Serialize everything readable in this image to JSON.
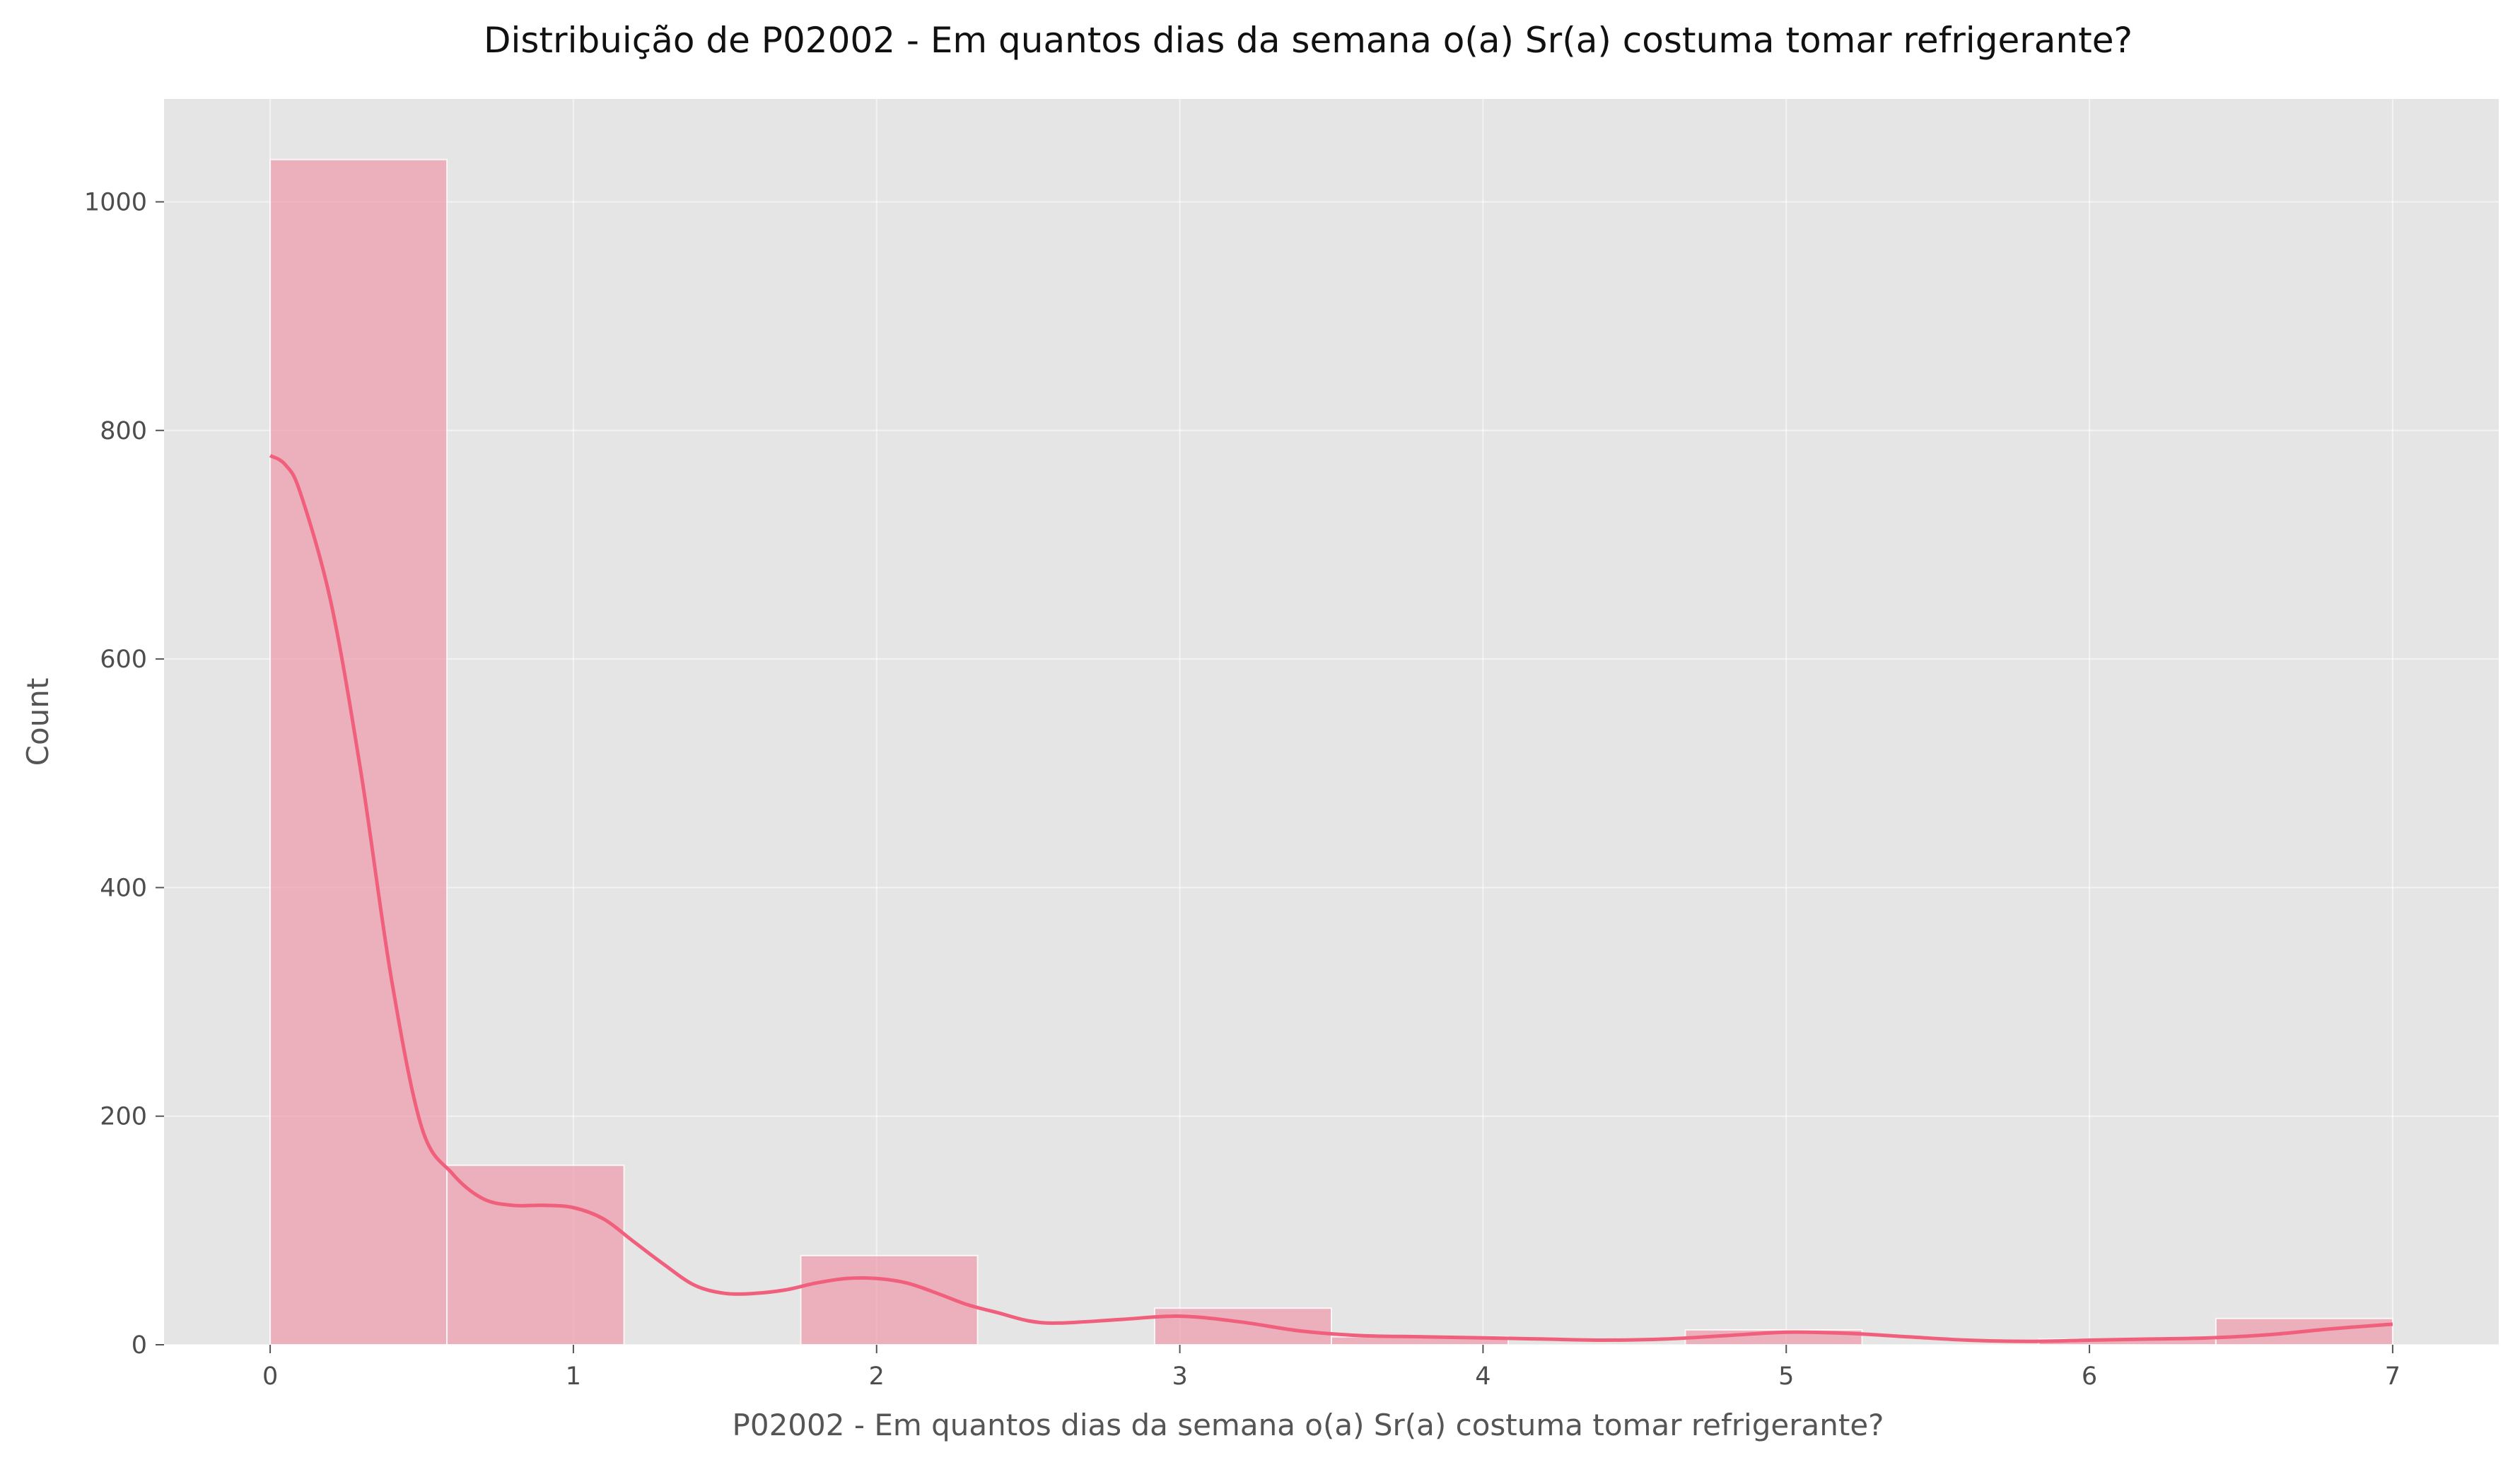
{
  "chart_data": {
    "type": "bar",
    "title": "Distribuição de P02002 - Em quantos dias da semana o(a) Sr(a) costuma tomar refrigerante?",
    "xlabel": "P02002 - Em quantos dias da semana o(a) Sr(a) costuma tomar refrigerante?",
    "ylabel": "Count",
    "xlim": [
      -0.35,
      7.35
    ],
    "ylim": [
      0,
      1090
    ],
    "xticks": [
      0,
      1,
      2,
      3,
      4,
      5,
      6,
      7
    ],
    "yticks": [
      0,
      200,
      400,
      600,
      800,
      1000
    ],
    "grid": true,
    "legend": false,
    "bar_color": "#f08ca0",
    "line_color": "#f0607d",
    "background_color": "#e5e5e5",
    "bins": [
      {
        "x0": 0.0,
        "x1": 0.583,
        "value": 1037
      },
      {
        "x0": 0.583,
        "x1": 1.167,
        "value": 157
      },
      {
        "x0": 1.167,
        "x1": 1.75,
        "value": 0
      },
      {
        "x0": 1.75,
        "x1": 2.333,
        "value": 78
      },
      {
        "x0": 2.333,
        "x1": 2.917,
        "value": 0
      },
      {
        "x0": 2.917,
        "x1": 3.5,
        "value": 32
      },
      {
        "x0": 3.5,
        "x1": 4.083,
        "value": 7
      },
      {
        "x0": 4.083,
        "x1": 4.667,
        "value": 0
      },
      {
        "x0": 4.667,
        "x1": 5.25,
        "value": 13
      },
      {
        "x0": 5.25,
        "x1": 5.833,
        "value": 0
      },
      {
        "x0": 5.833,
        "x1": 6.417,
        "value": 5
      },
      {
        "x0": 6.417,
        "x1": 7.0,
        "value": 23
      }
    ],
    "kde": {
      "x": [
        0,
        0.05,
        0.1,
        0.2,
        0.3,
        0.4,
        0.5,
        0.6,
        0.7,
        0.8,
        0.9,
        1.0,
        1.1,
        1.2,
        1.3,
        1.4,
        1.5,
        1.6,
        1.7,
        1.8,
        1.9,
        2.0,
        2.1,
        2.2,
        2.3,
        2.4,
        2.5,
        2.6,
        2.8,
        3.0,
        3.2,
        3.4,
        3.6,
        3.8,
        4.0,
        4.2,
        4.4,
        4.6,
        4.8,
        5.0,
        5.2,
        5.4,
        5.6,
        5.8,
        6.0,
        6.2,
        6.4,
        6.6,
        6.8,
        7.0
      ],
      "y": [
        778,
        770,
        745,
        650,
        500,
        320,
        190,
        150,
        128,
        122,
        122,
        120,
        110,
        90,
        70,
        52,
        45,
        45,
        48,
        54,
        58,
        58,
        54,
        45,
        35,
        28,
        21,
        19,
        22,
        25,
        20,
        12,
        8,
        7,
        6,
        5,
        4,
        5,
        8,
        11,
        10,
        7,
        4,
        3,
        4,
        5,
        6,
        9,
        14,
        18
      ]
    }
  }
}
